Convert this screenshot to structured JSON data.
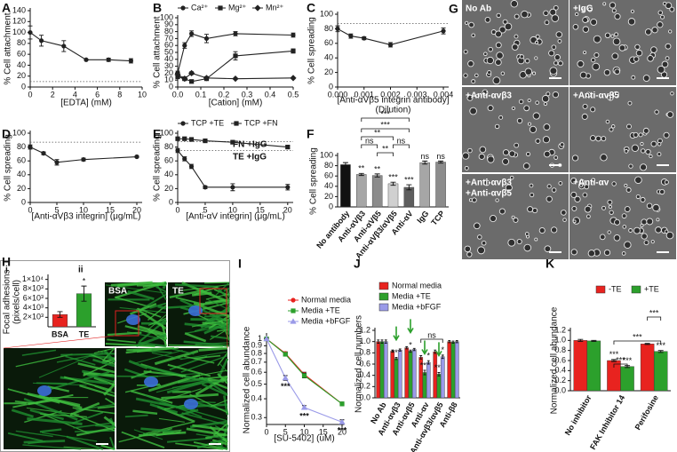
{
  "chart_data": [
    {
      "panel": "A",
      "type": "line",
      "ylabel": "% Cell attachment",
      "xlabel": "[EDTA] (mM)",
      "x": [
        0,
        1,
        3,
        5,
        7,
        9
      ],
      "series": [
        {
          "color": "#222222",
          "marker": "circle",
          "values": [
            100,
            85,
            75,
            50,
            50,
            48
          ],
          "errors": [
            12,
            10,
            10,
            1,
            3,
            4
          ]
        }
      ],
      "xlim": [
        0,
        10
      ],
      "ylim": [
        0,
        140
      ],
      "xticks": [
        0,
        2,
        4,
        6,
        8,
        10
      ],
      "yticks": [
        0,
        20,
        40,
        60,
        80,
        100,
        120,
        140
      ],
      "ref_lines": [
        10
      ]
    },
    {
      "panel": "B",
      "type": "line",
      "ylabel": "% Cell attachment",
      "xlabel": "[Cation] (mM)",
      "x": [
        0,
        0.03,
        0.06,
        0.125,
        0.25,
        0.5
      ],
      "series": [
        {
          "name": "Ca²⁺",
          "color": "#222222",
          "marker": "circle",
          "values": [
            20,
            60,
            77,
            70,
            77,
            75
          ],
          "errors": [
            3,
            4,
            4,
            6,
            3,
            3
          ]
        },
        {
          "name": "Mg²⁺",
          "color": "#222222",
          "marker": "square",
          "values": [
            15,
            12,
            8,
            12,
            45,
            52
          ],
          "errors": [
            3,
            2,
            2,
            2,
            6,
            3
          ]
        },
        {
          "name": "Mn²⁺",
          "color": "#222222",
          "marker": "diamond",
          "values": [
            18,
            12,
            20,
            13,
            12,
            13
          ],
          "errors": [
            3,
            2,
            2,
            2,
            1,
            1
          ]
        }
      ],
      "xlim": [
        0,
        0.5
      ],
      "ylim": [
        0,
        100
      ],
      "xticks": [
        {
          "value": 0,
          "label": "0.0"
        },
        0.1,
        0.2,
        0.3,
        0.4,
        0.5
      ],
      "yticks": [
        0,
        10,
        20,
        30,
        40,
        50,
        60,
        70,
        80,
        90,
        100
      ]
    },
    {
      "panel": "C",
      "type": "line",
      "ylabel": "% Cell spreading",
      "xlabel": [
        "[Anti-αVβ5 integrin antibody]",
        "(Dilution)"
      ],
      "x": [
        0,
        0.0005,
        0.001,
        0.002,
        0.004
      ],
      "series": [
        {
          "color": "#222222",
          "marker": "circle",
          "values": [
            80,
            70,
            67,
            58,
            77
          ],
          "errors": [
            4,
            3,
            2,
            3,
            4
          ]
        }
      ],
      "xlim": [
        0,
        0.0042
      ],
      "ylim": [
        0,
        100
      ],
      "xticks": [
        {
          "value": 0,
          "label": "0.000"
        },
        0.001,
        0.002,
        0.003,
        0.004
      ],
      "yticks": [
        0,
        20,
        40,
        60,
        80,
        100
      ],
      "ref_lines": [
        87
      ]
    },
    {
      "panel": "D",
      "type": "line",
      "ylabel": "% Cell spreading",
      "xlabel": "[Anti-αVβ3 integrin] (μg/mL)",
      "x": [
        0,
        2.5,
        5,
        10,
        20
      ],
      "series": [
        {
          "color": "#222222",
          "marker": "circle",
          "values": [
            80,
            71,
            58,
            62,
            66
          ],
          "errors": [
            3,
            2,
            4,
            2,
            1
          ]
        }
      ],
      "xlim": [
        0,
        21
      ],
      "ylim": [
        0,
        100
      ],
      "xticks": [
        0,
        5,
        10,
        15,
        20
      ],
      "yticks": [
        0,
        20,
        40,
        60,
        80,
        100
      ],
      "ref_lines": [
        87
      ]
    },
    {
      "panel": "E",
      "type": "line",
      "ylabel": "% Cell spreading",
      "xlabel": "[Anti-αV integrin] (μg/mL)",
      "x": [
        0,
        1.25,
        2.5,
        5,
        10,
        20
      ],
      "series": [
        {
          "name": "TCP +TE",
          "color": "#222222",
          "marker": "circle",
          "values": [
            75,
            63,
            52,
            22,
            22,
            22
          ],
          "errors": [
            3,
            3,
            3,
            2,
            5,
            4
          ]
        },
        {
          "name": "TCP +FN",
          "color": "#222222",
          "marker": "square",
          "values": [
            92,
            92,
            91,
            89,
            87,
            80
          ],
          "errors": [
            2,
            2,
            2,
            2,
            2,
            2
          ]
        }
      ],
      "xlim": [
        0,
        21
      ],
      "ylim": [
        0,
        100
      ],
      "xticks": [
        0,
        5,
        10,
        15,
        20
      ],
      "yticks": [
        0,
        20,
        40,
        60,
        80,
        100
      ],
      "ref_lines": [
        88,
        75
      ],
      "annotations": [
        "FN +IgG",
        "TE +IgG"
      ]
    },
    {
      "panel": "F",
      "type": "bar",
      "ylabel": "% Cell spreading",
      "categories": [
        "No antibody",
        "Anti-αVβ3",
        "Anti-αVβ5",
        "Anti-αVβ3/αVβ5",
        "Anti-αV",
        "IgG",
        "TCP"
      ],
      "values": [
        82,
        63,
        61,
        45,
        38,
        86,
        87
      ],
      "errors": [
        4,
        2,
        3,
        3,
        5,
        3,
        2
      ],
      "colors": [
        "#111111",
        "#a6a6a6",
        "#8c8c8c",
        "#d0d0d0",
        "#5e5e5e",
        "#a6a6a6",
        "#8c8c8c"
      ],
      "significance": [
        null,
        "**",
        "**",
        "***",
        "***",
        "ns",
        "ns"
      ],
      "brackets": [
        "***",
        "***",
        "**",
        "ns",
        "ns",
        "**"
      ],
      "ylim": [
        0,
        100
      ],
      "yticks": [
        0,
        20,
        40,
        60,
        80,
        100
      ]
    },
    {
      "type": "bar",
      "ylabel": [
        "Focal adhesions",
        "(pixels/cell)"
      ],
      "categories": [
        "BSA",
        "TE"
      ],
      "values": [
        2600,
        7000
      ],
      "errors": [
        600,
        1600
      ],
      "colors": [
        "#e8231f",
        "#2ca02c"
      ],
      "significance": [
        null,
        "*"
      ],
      "ylim": [
        0,
        10500
      ],
      "yticks": [
        {
          "value": 2000,
          "label": "2×10³"
        },
        {
          "value": 4000,
          "label": "4×10³"
        },
        {
          "value": 6000,
          "label": "6×10³"
        },
        {
          "value": 8000,
          "label": "8×10³"
        },
        {
          "value": 10000,
          "label": "1×10⁴"
        }
      ]
    },
    {
      "panel": "I",
      "type": "line",
      "log_y": true,
      "ylabel": "Normalized cell abundance",
      "xlabel": "[SU-5402] (uM)",
      "x": [
        0,
        5,
        10,
        20
      ],
      "series": [
        {
          "name": "Normal media",
          "color": "#e8231f",
          "marker": "circle",
          "values": [
            1,
            0.8,
            0.58,
            0.37
          ],
          "errors": [
            0.01,
            0.02,
            0.02,
            0.01
          ]
        },
        {
          "name": "Media +TE",
          "color": "#2ca02c",
          "marker": "square",
          "values": [
            1,
            0.79,
            0.57,
            0.37
          ],
          "errors": [
            0.01,
            0.02,
            0.02,
            0.01
          ]
        },
        {
          "name": "Media +bFGF",
          "color": "#9a9ae8",
          "marker": "triangle",
          "values": [
            1,
            0.55,
            0.35,
            0.28
          ],
          "errors": [
            0.01,
            0.02,
            0.01,
            0.01
          ],
          "significance": [
            null,
            "***",
            "***",
            "***"
          ]
        }
      ],
      "xlim": [
        0,
        20
      ],
      "ylim": [
        0.27,
        1.05
      ],
      "xticks": [
        0,
        5,
        10,
        15,
        20
      ],
      "yticks": [
        0.3,
        0.4,
        0.5,
        0.6,
        0.7,
        0.8,
        0.9,
        1
      ]
    },
    {
      "panel": "J",
      "type": "bar",
      "ylabel": "Normalized cell numbers",
      "categories": [
        "No Ab",
        "Anti-αvβ3",
        "Anti-αvβ5",
        "Anti-αv",
        "Anti-αvβ3/αvβ5",
        "Anti-β8"
      ],
      "series": [
        {
          "name": "Normal media",
          "color": "#e8231f",
          "values": [
            1,
            0.83,
            0.89,
            0.72,
            0.82,
            1
          ],
          "errors": [
            0.03,
            0.02,
            0.02,
            0.03,
            0.03,
            0.02
          ]
        },
        {
          "name": "Media +TE",
          "color": "#2ca02c",
          "values": [
            1,
            0.7,
            0.83,
            0.45,
            0.42,
            0.99
          ],
          "errors": [
            0.03,
            0.02,
            0.02,
            0.04,
            0.03,
            0.02
          ],
          "significance": [
            null,
            "***",
            "*",
            "***",
            "***",
            null
          ]
        },
        {
          "name": "Media +bFGF",
          "color": "#9a9ae8",
          "values": [
            1,
            0.85,
            0.86,
            0.63,
            0.73,
            1
          ],
          "errors": [
            0.03,
            0.02,
            0.02,
            0.03,
            0.03,
            0.02
          ],
          "significance": [
            null,
            null,
            null,
            "*",
            "*",
            null
          ]
        }
      ],
      "brackets": [
        "ns"
      ],
      "ylim": [
        0,
        1.2
      ],
      "yticks": [
        {
          "value": 0,
          "label": "0.0"
        },
        0.2,
        0.4,
        0.6,
        0.8,
        {
          "value": 1,
          "label": "1.0"
        },
        1.2
      ]
    },
    {
      "panel": "K",
      "type": "bar",
      "ylabel": "Normalized cell abundance",
      "categories": [
        "No inhibitor",
        "FAK Inhibitor 14",
        "Perifosine"
      ],
      "series": [
        {
          "name": "-TE",
          "color": "#e8231f",
          "values": [
            1,
            0.6,
            0.93
          ],
          "errors": [
            0.02,
            0.02,
            0.01
          ],
          "significance": [
            null,
            "***",
            null
          ]
        },
        {
          "name": "+TE",
          "color": "#2ca02c",
          "values": [
            0.99,
            0.48,
            0.78
          ],
          "errors": [
            0.01,
            0.02,
            0.02
          ],
          "significance": [
            null,
            "***",
            "***"
          ]
        }
      ],
      "brackets": [
        "***",
        "***",
        "***"
      ],
      "ylim": [
        0,
        1.2
      ],
      "yticks": [
        {
          "value": 0,
          "label": "0.0"
        },
        0.2,
        0.4,
        0.6,
        0.8,
        {
          "value": 1,
          "label": "1.0"
        },
        1.2
      ]
    }
  ],
  "figure_images": {
    "G": {
      "panel": "G",
      "labels": [
        "No Ab",
        "+IgG",
        "+Anti-αvβ3",
        "+Anti-αvβ5",
        [
          "+Anti-αvβ3",
          "+Anti-αvβ5"
        ],
        "+Anti-αv"
      ]
    },
    "H": {
      "panel": "H",
      "labels": [
        "i",
        "ii",
        "BSA",
        "TE"
      ]
    }
  }
}
